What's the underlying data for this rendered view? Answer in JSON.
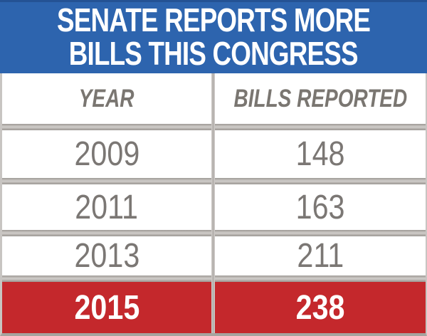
{
  "banner": {
    "title_line1": "SENATE REPORTS MORE",
    "title_line2": "BILLS THIS CONGRESS",
    "bg_color": "#2d64ae",
    "text_color": "#ffffff"
  },
  "table": {
    "columns": [
      "YEAR",
      "BILLS REPORTED"
    ],
    "rows": [
      {
        "year": "2009",
        "bills": "148",
        "highlight": false
      },
      {
        "year": "2011",
        "bills": "163",
        "highlight": false
      },
      {
        "year": "2013",
        "bills": "211",
        "highlight": false
      },
      {
        "year": "2015",
        "bills": "238",
        "highlight": true
      }
    ],
    "header_text_color": "#7a7671",
    "data_text_color": "#7b7774",
    "highlight_bg_color": "#c4282c",
    "highlight_text_color": "#ffffff",
    "separator_color": "#a9a5a1",
    "border_color": "#c8c5c2"
  },
  "chart_data": {
    "type": "table",
    "title": "SENATE REPORTS MORE BILLS THIS CONGRESS",
    "columns": [
      "YEAR",
      "BILLS REPORTED"
    ],
    "categories": [
      "2009",
      "2011",
      "2013",
      "2015"
    ],
    "values": [
      148,
      163,
      211,
      238
    ],
    "highlighted_row": "2015",
    "layout": "two-column data table, final row highlighted red"
  }
}
